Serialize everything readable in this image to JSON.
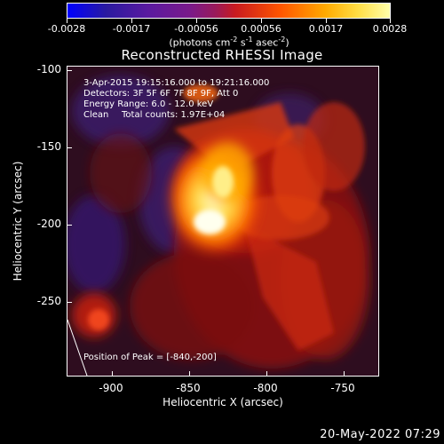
{
  "colorbar": {
    "ticks": [
      "-0.0028",
      "-0.0017",
      "-0.00056",
      "0.00056",
      "0.0017",
      "0.0028"
    ],
    "units_prefix": "(photons cm",
    "units_exp1": "-2",
    "units_mid1": " s",
    "units_exp2": "-1",
    "units_mid2": " asec",
    "units_exp3": "-2",
    "units_suffix": ")"
  },
  "plot": {
    "title": "Reconstructed RHESSI Image",
    "annotations": {
      "time_range": "3-Apr-2015 19:15:16.000 to 19:21:16.000",
      "detectors": "Detectors: 3F 5F 6F 7F 8F 9F, Att 0",
      "energy": "Energy Range: 6.0 - 12.0 keV",
      "algorithm": "Clean",
      "counts": "Total counts: 1.97E+04",
      "peak": "Position of Peak = [-840,-200]"
    },
    "x_axis": {
      "title": "Heliocentric X (arcsec)",
      "ticks": [
        "-900",
        "-850",
        "-800",
        "-750"
      ]
    },
    "y_axis": {
      "title": "Heliocentric Y (arcsec)",
      "ticks": [
        "-100",
        "-150",
        "-200",
        "-250"
      ]
    }
  },
  "footer": {
    "timestamp": "20-May-2022 07:29"
  }
}
